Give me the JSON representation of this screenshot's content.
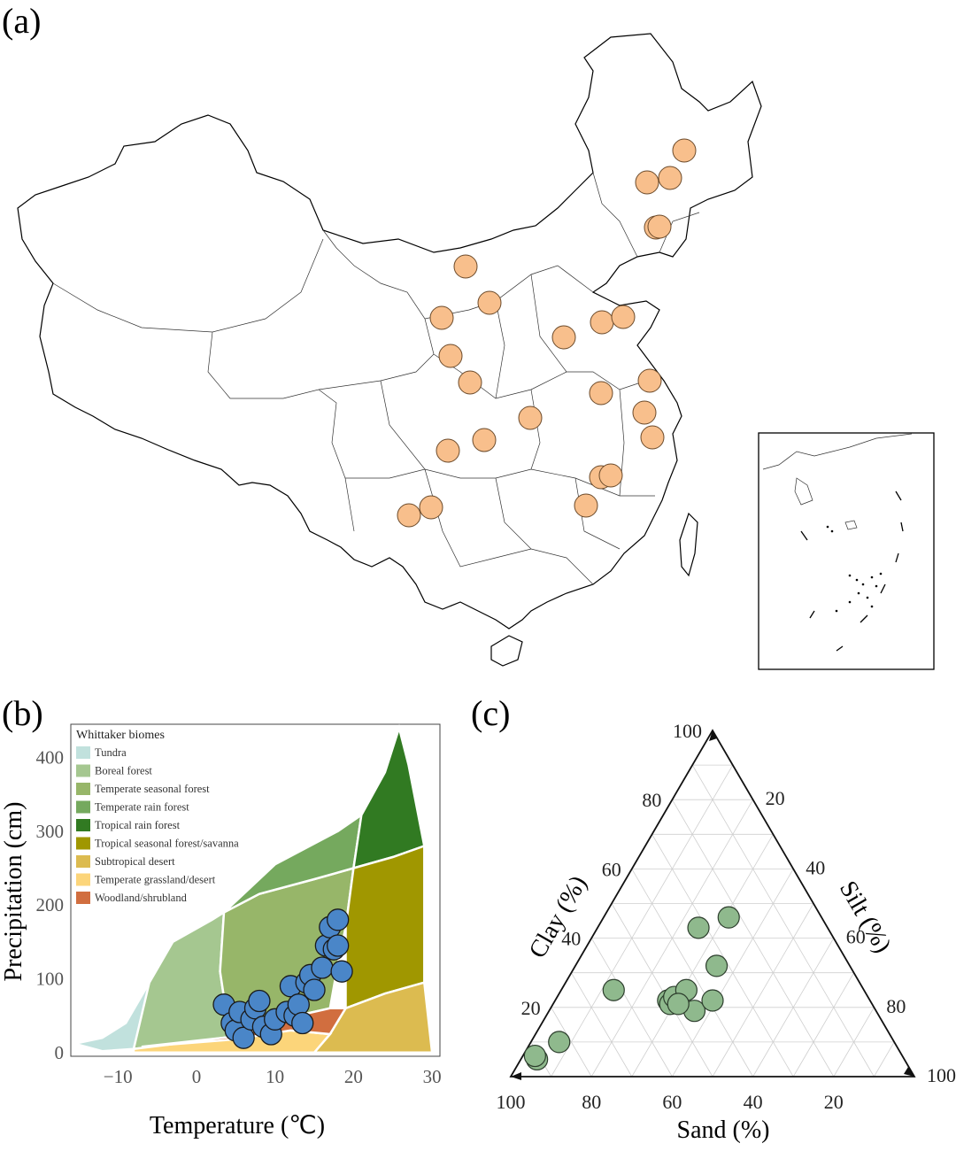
{
  "panels": {
    "a": "(a)",
    "b": "(b)",
    "c": "(c)"
  },
  "map": {
    "marker_color": "#f8bf8c",
    "site_count": 29
  },
  "whittaker": {
    "legend_title": "Whittaker biomes",
    "biomes": [
      {
        "name": "Tundra",
        "color": "#c1e1dd"
      },
      {
        "name": "Boreal forest",
        "color": "#a5c790"
      },
      {
        "name": "Temperate seasonal forest",
        "color": "#97b669"
      },
      {
        "name": "Temperate rain forest",
        "color": "#75a95e"
      },
      {
        "name": "Tropical rain forest",
        "color": "#317a22"
      },
      {
        "name": "Tropical seasonal forest/savanna",
        "color": "#a09700"
      },
      {
        "name": "Subtropical desert",
        "color": "#dcbb50"
      },
      {
        "name": "Temperate grassland/desert",
        "color": "#fcd57a"
      },
      {
        "name": "Woodland/shrubland",
        "color": "#d16e3f"
      }
    ],
    "xlabel": "Temperature (℃)",
    "ylabel": "Precipitation (cm)",
    "xticks": [
      "−10",
      "0",
      "10",
      "20",
      "30"
    ],
    "yticks": [
      "0",
      "100",
      "200",
      "300",
      "400"
    ],
    "point_color": "#4a86c8"
  },
  "ternary": {
    "point_color": "#8fb98d",
    "clay_label": "Clay (%)",
    "silt_label": "Silt (%)",
    "sand_label": "Sand (%)",
    "clay_ticks": [
      "20",
      "40",
      "60",
      "80",
      "100"
    ],
    "silt_ticks": [
      "20",
      "40",
      "60",
      "80",
      "100"
    ],
    "sand_ticks": [
      "100",
      "80",
      "60",
      "40",
      "20"
    ]
  },
  "chart_data": [
    {
      "type": "scatter",
      "title": "",
      "xlabel": "Temperature (℃)",
      "ylabel": "Precipitation (cm)",
      "xlim": [
        -16,
        31
      ],
      "ylim": [
        -5,
        445
      ],
      "grid": false,
      "legend": "top-left",
      "x": [
        3.5,
        4.5,
        5,
        5.5,
        6,
        7,
        7.5,
        8,
        8.5,
        9.5,
        10,
        11.5,
        12,
        12.5,
        13,
        13.5,
        14,
        14.5,
        15,
        16,
        16.5,
        17,
        17.5,
        18,
        18,
        18.5
      ],
      "y": [
        65,
        40,
        30,
        55,
        20,
        45,
        60,
        70,
        35,
        25,
        45,
        55,
        90,
        50,
        65,
        40,
        95,
        105,
        85,
        115,
        145,
        170,
        140,
        145,
        180,
        110
      ]
    },
    {
      "type": "scatter",
      "title": "",
      "axes": [
        "Clay (%)",
        "Silt (%)",
        "Sand (%)"
      ],
      "points": [
        {
          "clay": 5,
          "silt": 4,
          "sand": 91
        },
        {
          "clay": 6,
          "silt": 3,
          "sand": 91
        },
        {
          "clay": 10,
          "silt": 7,
          "sand": 83
        },
        {
          "clay": 25,
          "silt": 13,
          "sand": 62
        },
        {
          "clay": 22,
          "silt": 28,
          "sand": 50
        },
        {
          "clay": 21,
          "silt": 29,
          "sand": 50
        },
        {
          "clay": 23,
          "silt": 29,
          "sand": 48
        },
        {
          "clay": 25,
          "silt": 31,
          "sand": 44
        },
        {
          "clay": 19,
          "silt": 36,
          "sand": 45
        },
        {
          "clay": 22,
          "silt": 39,
          "sand": 39
        },
        {
          "clay": 32,
          "silt": 35,
          "sand": 33
        },
        {
          "clay": 43,
          "silt": 25,
          "sand": 32
        },
        {
          "clay": 46,
          "silt": 31,
          "sand": 23
        },
        {
          "clay": 21,
          "silt": 31,
          "sand": 48
        }
      ]
    }
  ]
}
